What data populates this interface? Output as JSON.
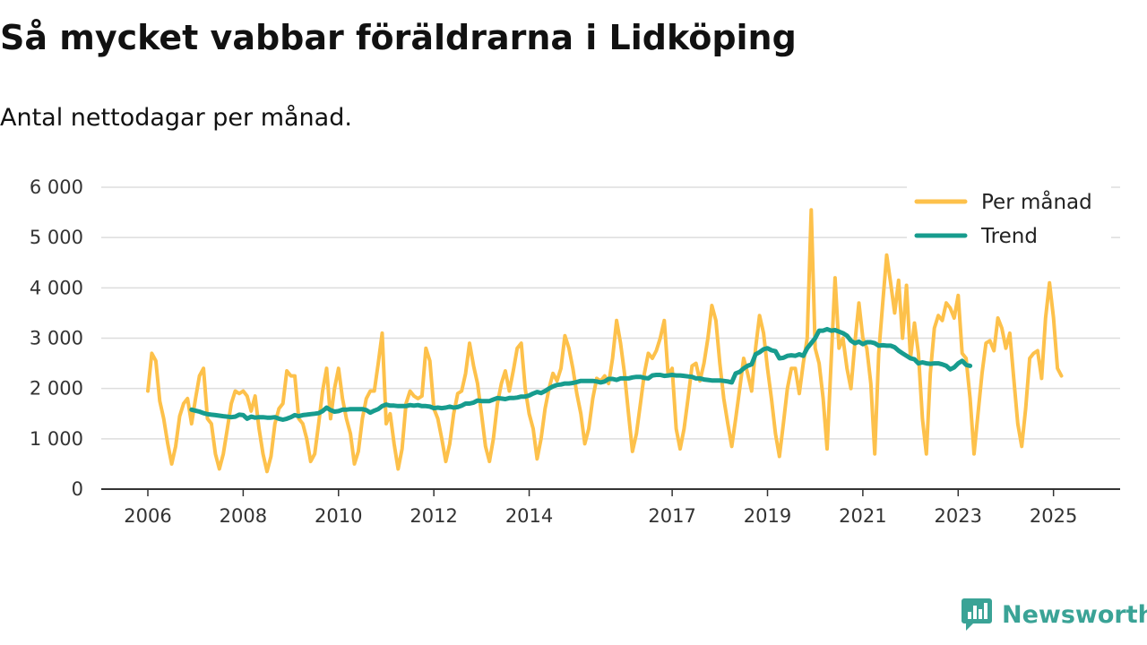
{
  "title": "Så mycket vabbar föräldrarna i Lidköping",
  "subtitle": "Antal nettodagar per månad.",
  "brand": {
    "name": "Newsworthy",
    "icon": "newsworthy-logo-icon"
  },
  "colors": {
    "per_month": "#FDC14B",
    "trend": "#179C8E",
    "grid": "#dddddd",
    "axis": "#333333"
  },
  "chart_data": {
    "type": "line",
    "title": "Så mycket vabbar föräldrarna i Lidköping",
    "subtitle": "Antal nettodagar per månad.",
    "xlabel": "",
    "ylabel": "",
    "ylim": [
      0,
      6000
    ],
    "xlim": [
      2006.0,
      2025.42
    ],
    "y_ticks": [
      0,
      1000,
      2000,
      3000,
      4000,
      5000,
      6000
    ],
    "y_tick_labels": [
      "0",
      "1 000",
      "2 000",
      "3 000",
      "4 000",
      "5 000",
      "6 000"
    ],
    "x_ticks": [
      2006,
      2008,
      2010,
      2012,
      2014,
      2017,
      2019,
      2021,
      2023,
      2025
    ],
    "x_tick_labels": [
      "2006",
      "2008",
      "2010",
      "2012",
      "2014",
      "2017",
      "2019",
      "2021",
      "2023",
      "2025"
    ],
    "grid": true,
    "legend_position": "top-right",
    "series": [
      {
        "name": "Per månad",
        "start": "2006-01",
        "frequency": "monthly",
        "values": [
          1950,
          2700,
          2550,
          1750,
          1400,
          900,
          500,
          850,
          1450,
          1700,
          1800,
          1300,
          1800,
          2250,
          2400,
          1400,
          1300,
          700,
          400,
          700,
          1200,
          1700,
          1950,
          1900,
          1950,
          1850,
          1550,
          1850,
          1200,
          700,
          350,
          650,
          1300,
          1600,
          1700,
          2350,
          2250,
          2250,
          1400,
          1300,
          1000,
          550,
          700,
          1300,
          1950,
          2400,
          1400,
          2000,
          2400,
          1800,
          1400,
          1100,
          500,
          750,
          1400,
          1800,
          1950,
          1950,
          2500,
          3100,
          1300,
          1500,
          900,
          400,
          800,
          1700,
          1950,
          1850,
          1800,
          1850,
          2800,
          2550,
          1600,
          1400,
          1000,
          550,
          900,
          1500,
          1900,
          1950,
          2300,
          2900,
          2450,
          2100,
          1500,
          850,
          550,
          1000,
          1700,
          2100,
          2350,
          1950,
          2350,
          2800,
          2900,
          2000,
          1500,
          1200,
          600,
          1000,
          1600,
          2000,
          2300,
          2150,
          2400,
          3050,
          2800,
          2400,
          1900,
          1500,
          900,
          1200,
          1800,
          2200,
          2150,
          2250,
          2100,
          2600,
          3350,
          2900,
          2300,
          1500,
          750,
          1100,
          1700,
          2300,
          2700,
          2600,
          2750,
          3000,
          3350,
          2250,
          2400,
          1200,
          800,
          1200,
          1800,
          2450,
          2500,
          2150,
          2500,
          3000,
          3650,
          3350,
          2500,
          1800,
          1300,
          850,
          1400,
          2000,
          2600,
          2300,
          1950,
          2800,
          3450,
          3100,
          2400,
          1800,
          1100,
          650,
          1300,
          2000,
          2400,
          2400,
          1900,
          2500,
          3000,
          5550,
          2800,
          2500,
          1800,
          800,
          2500,
          4200,
          2800,
          3000,
          2400,
          2000,
          2900,
          3700,
          3000,
          2800,
          2100,
          700,
          2700,
          3700,
          4650,
          4100,
          3500,
          4150,
          3000,
          4050,
          2600,
          3300,
          2700,
          1400,
          700,
          2300,
          3200,
          3450,
          3350,
          3700,
          3600,
          3400,
          3850,
          2700,
          2600,
          1800,
          700,
          1500,
          2300,
          2900,
          2950,
          2750,
          3400,
          3200,
          2800,
          3100,
          2200,
          1300,
          850,
          1600,
          2600,
          2700,
          2750,
          2200,
          3400,
          4100,
          3400,
          2400,
          2250
        ]
      },
      {
        "name": "Trend",
        "start": "2006-12",
        "frequency": "monthly",
        "values": [
          1580,
          1560,
          1540,
          1510,
          1490,
          1480,
          1470,
          1460,
          1450,
          1440,
          1430,
          1440,
          1480,
          1470,
          1400,
          1440,
          1420,
          1430,
          1430,
          1420,
          1420,
          1430,
          1400,
          1380,
          1400,
          1430,
          1470,
          1450,
          1470,
          1480,
          1490,
          1500,
          1510,
          1550,
          1620,
          1570,
          1540,
          1550,
          1580,
          1580,
          1590,
          1590,
          1590,
          1590,
          1570,
          1520,
          1560,
          1590,
          1650,
          1680,
          1660,
          1660,
          1650,
          1650,
          1650,
          1670,
          1660,
          1670,
          1650,
          1650,
          1640,
          1610,
          1620,
          1610,
          1620,
          1640,
          1620,
          1630,
          1660,
          1700,
          1700,
          1720,
          1760,
          1750,
          1750,
          1750,
          1780,
          1810,
          1800,
          1790,
          1810,
          1810,
          1820,
          1840,
          1840,
          1860,
          1900,
          1930,
          1910,
          1950,
          2000,
          2040,
          2070,
          2080,
          2100,
          2100,
          2110,
          2130,
          2150,
          2150,
          2150,
          2150,
          2140,
          2120,
          2140,
          2190,
          2190,
          2170,
          2200,
          2200,
          2200,
          2220,
          2230,
          2230,
          2210,
          2200,
          2260,
          2270,
          2270,
          2250,
          2260,
          2270,
          2260,
          2260,
          2250,
          2240,
          2230,
          2200,
          2200,
          2180,
          2170,
          2160,
          2160,
          2160,
          2150,
          2140,
          2120,
          2300,
          2330,
          2400,
          2450,
          2480,
          2680,
          2720,
          2780,
          2800,
          2760,
          2740,
          2600,
          2610,
          2650,
          2660,
          2650,
          2680,
          2650,
          2800,
          2900,
          3000,
          3150,
          3150,
          3180,
          3150,
          3160,
          3130,
          3100,
          3050,
          2950,
          2900,
          2930,
          2880,
          2920,
          2920,
          2900,
          2850,
          2860,
          2850,
          2850,
          2820,
          2750,
          2700,
          2650,
          2600,
          2580,
          2500,
          2520,
          2500,
          2490,
          2500,
          2500,
          2480,
          2450,
          2380,
          2420,
          2500,
          2550,
          2470,
          2450
        ]
      }
    ]
  }
}
